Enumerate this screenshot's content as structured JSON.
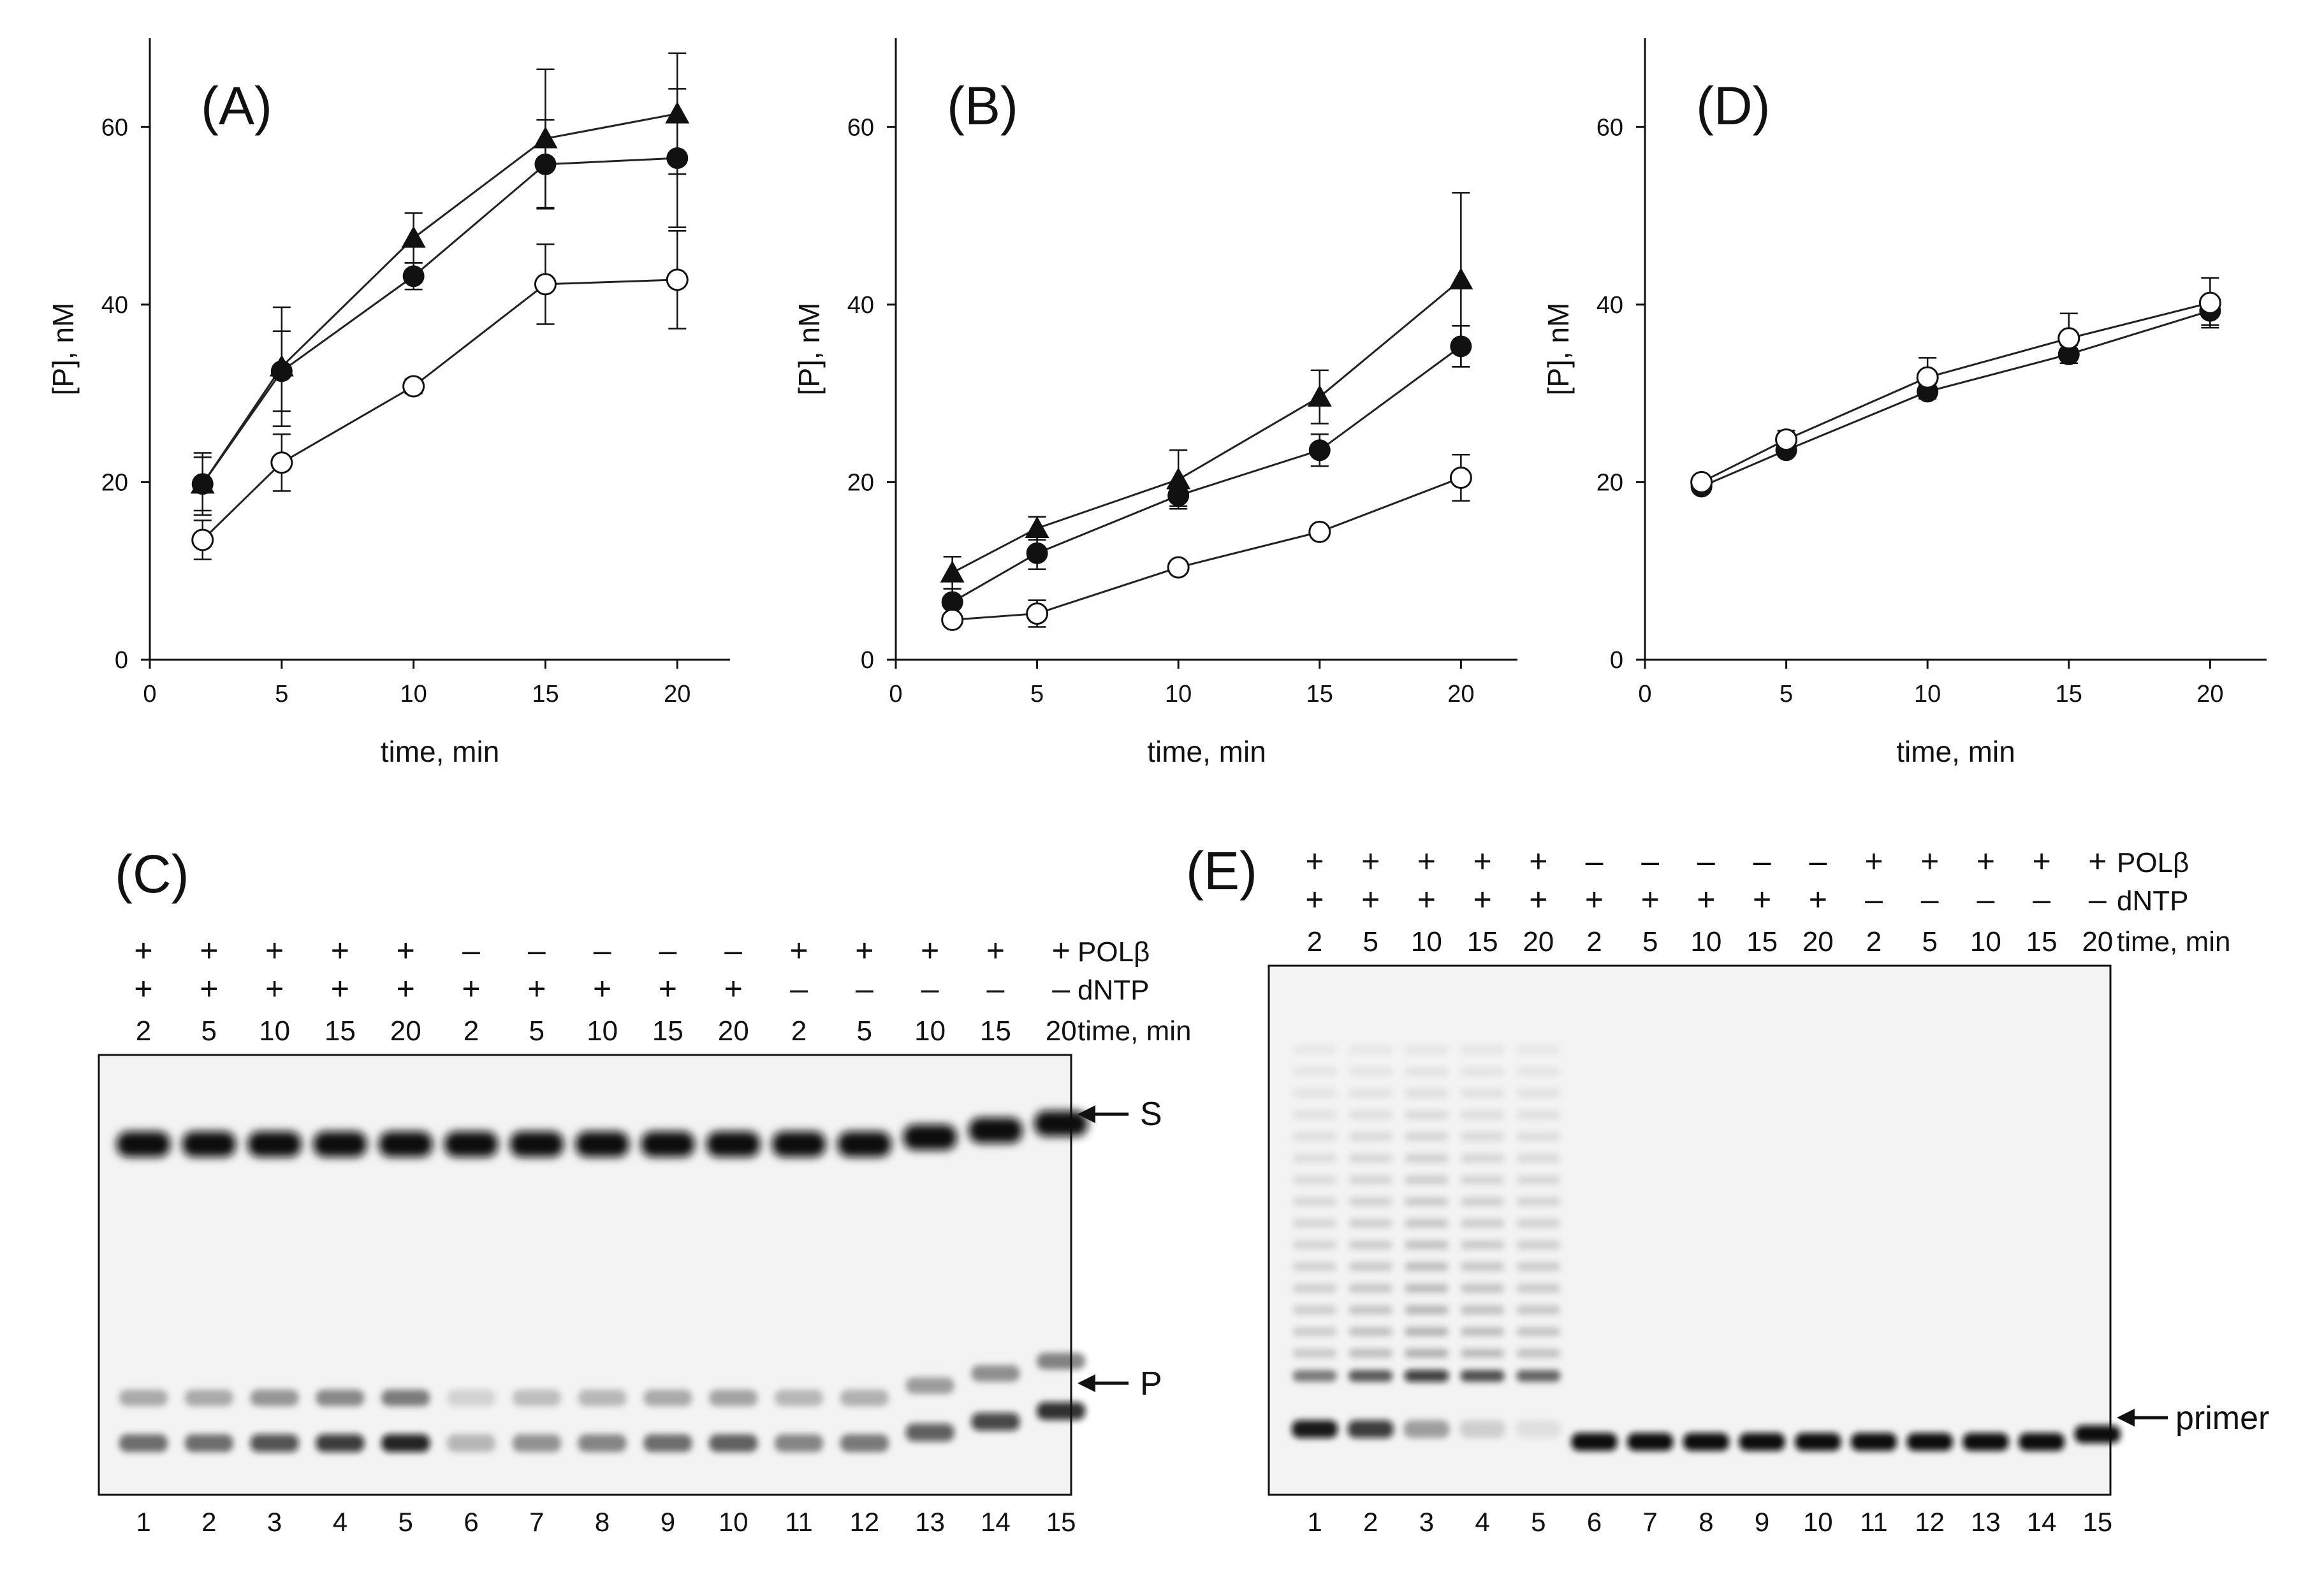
{
  "chart_data": [
    {
      "panel": "(A)",
      "type": "line",
      "title": "(A)",
      "xlabel": "time, min",
      "ylabel": "[P], nM",
      "xlim": [
        0,
        22
      ],
      "ylim": [
        0,
        70
      ],
      "xticks": [
        0,
        5,
        10,
        15,
        20
      ],
      "yticks": [
        0,
        20,
        40,
        60
      ],
      "grid": false,
      "x": [
        2,
        5,
        10,
        15,
        20
      ],
      "series": [
        {
          "name": "filled-triangle",
          "marker": "triangle-filled",
          "values": [
            19.8,
            33.0,
            47.5,
            58.7,
            61.5
          ],
          "errors": [
            3.5,
            6.7,
            2.8,
            7.8,
            6.8
          ]
        },
        {
          "name": "filled-circle",
          "marker": "circle-filled",
          "values": [
            19.8,
            32.5,
            43.2,
            55.8,
            56.5
          ],
          "errors": [
            3.0,
            4.5,
            1.5,
            5.0,
            7.8
          ]
        },
        {
          "name": "open-circle",
          "marker": "circle-open",
          "values": [
            13.5,
            22.2,
            30.8,
            42.3,
            42.8
          ],
          "errors": [
            2.2,
            3.2,
            0.8,
            4.5,
            5.5
          ]
        }
      ]
    },
    {
      "panel": "(B)",
      "type": "line",
      "title": "(B)",
      "xlabel": "time, min",
      "ylabel": "[P], nM",
      "xlim": [
        0,
        22
      ],
      "ylim": [
        0,
        70
      ],
      "xticks": [
        0,
        5,
        10,
        15,
        20
      ],
      "yticks": [
        0,
        20,
        40,
        60
      ],
      "grid": false,
      "x": [
        2,
        5,
        10,
        15,
        20
      ],
      "series": [
        {
          "name": "filled-triangle",
          "marker": "triangle-filled",
          "values": [
            9.8,
            14.8,
            20.3,
            29.6,
            42.8
          ],
          "errors": [
            1.8,
            1.3,
            3.3,
            3.0,
            9.8
          ]
        },
        {
          "name": "filled-circle",
          "marker": "circle-filled",
          "values": [
            6.5,
            12.0,
            18.5,
            23.6,
            35.3
          ],
          "errors": [
            1.5,
            1.8,
            1.2,
            1.8,
            2.3
          ]
        },
        {
          "name": "open-circle",
          "marker": "circle-open",
          "values": [
            4.5,
            5.2,
            10.4,
            14.4,
            20.5
          ],
          "errors": [
            0.5,
            1.5,
            0.5,
            0.5,
            2.6
          ]
        }
      ]
    },
    {
      "panel": "(D)",
      "type": "line",
      "title": "(D)",
      "xlabel": "time, min",
      "ylabel": "[P], nM",
      "xlim": [
        0,
        22
      ],
      "ylim": [
        0,
        70
      ],
      "xticks": [
        0,
        5,
        10,
        15,
        20
      ],
      "yticks": [
        0,
        20,
        40,
        60
      ],
      "grid": false,
      "x": [
        2,
        5,
        10,
        15,
        20
      ],
      "series": [
        {
          "name": "filled-circle",
          "marker": "circle-filled",
          "values": [
            19.5,
            23.6,
            30.2,
            34.4,
            39.3
          ],
          "errors": [
            0.5,
            0.6,
            0.8,
            1.0,
            1.6
          ]
        },
        {
          "name": "open-circle",
          "marker": "circle-open",
          "values": [
            20.0,
            24.8,
            31.8,
            36.2,
            40.2
          ],
          "errors": [
            0.6,
            1.0,
            2.2,
            2.8,
            2.8
          ]
        }
      ]
    },
    {
      "panel": "(C)",
      "type": "gel",
      "title": "(C)",
      "conditions": {
        "rows": [
          "POLβ",
          "dNTP",
          "time, min"
        ],
        "polb": [
          "+",
          "+",
          "+",
          "+",
          "+",
          "–",
          "–",
          "–",
          "–",
          "–",
          "+",
          "+",
          "+",
          "+",
          "+"
        ],
        "dntp": [
          "+",
          "+",
          "+",
          "+",
          "+",
          "+",
          "+",
          "+",
          "+",
          "+",
          "–",
          "–",
          "–",
          "–",
          "–"
        ],
        "time": [
          "2",
          "5",
          "10",
          "15",
          "20",
          "2",
          "5",
          "10",
          "15",
          "20",
          "2",
          "5",
          "10",
          "15",
          "20"
        ]
      },
      "lanes": [
        "1",
        "2",
        "3",
        "4",
        "5",
        "6",
        "7",
        "8",
        "9",
        "10",
        "11",
        "12",
        "13",
        "14",
        "15"
      ],
      "band_labels": [
        "S",
        "P"
      ],
      "product_intensity": [
        0.55,
        0.55,
        0.7,
        0.8,
        0.9,
        0.25,
        0.4,
        0.45,
        0.55,
        0.6,
        0.45,
        0.5,
        0.65,
        0.75,
        0.85
      ]
    },
    {
      "panel": "(E)",
      "type": "gel",
      "title": "(E)",
      "conditions": {
        "rows": [
          "POLβ",
          "dNTP",
          "time, min"
        ],
        "polb": [
          "+",
          "+",
          "+",
          "+",
          "+",
          "–",
          "–",
          "–",
          "–",
          "–",
          "+",
          "+",
          "+",
          "+",
          "+"
        ],
        "dntp": [
          "+",
          "+",
          "+",
          "+",
          "+",
          "+",
          "+",
          "+",
          "+",
          "+",
          "–",
          "–",
          "–",
          "–",
          "–"
        ],
        "time": [
          "2",
          "5",
          "10",
          "15",
          "20",
          "2",
          "5",
          "10",
          "15",
          "20",
          "2",
          "5",
          "10",
          "15",
          "20"
        ]
      },
      "lanes": [
        "1",
        "2",
        "3",
        "4",
        "5",
        "6",
        "7",
        "8",
        "9",
        "10",
        "11",
        "12",
        "13",
        "14",
        "15"
      ],
      "band_labels": [
        "primer"
      ],
      "extension_intensity": [
        0.45,
        0.6,
        0.8,
        0.65,
        0.55,
        0,
        0,
        0,
        0,
        0,
        0,
        0,
        0,
        0,
        0
      ],
      "primer_intensity": [
        0.95,
        0.8,
        0.35,
        0.15,
        0.08,
        1,
        1,
        1,
        1,
        1,
        1,
        1,
        1,
        1,
        1
      ]
    }
  ],
  "colors": {
    "ink": "#111111",
    "gel_background": "#f3f3f3",
    "band": "#0a0a0a"
  }
}
